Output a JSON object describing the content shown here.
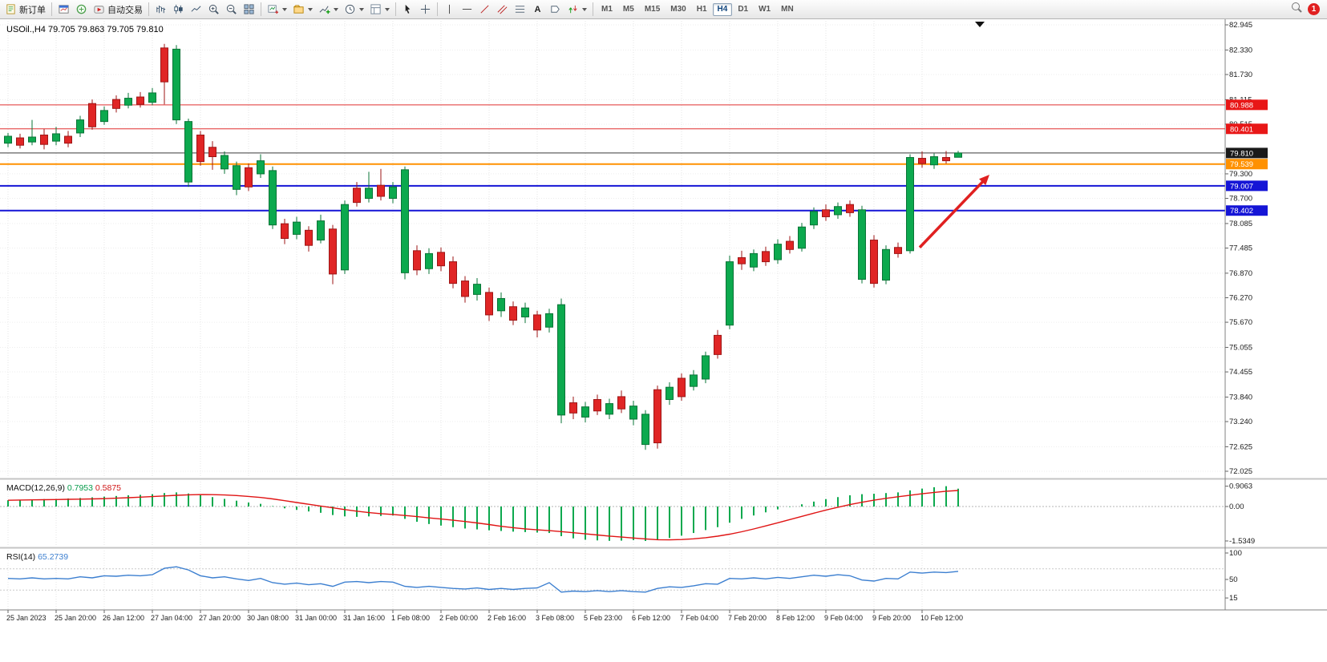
{
  "toolbar": {
    "new_order": "新订单",
    "auto_trading": "自动交易",
    "text_tool": "A",
    "timeframes": [
      "M1",
      "M5",
      "M15",
      "M30",
      "H1",
      "H4",
      "D1",
      "W1",
      "MN"
    ],
    "active_timeframe": "H4",
    "badge_count": "1"
  },
  "chart_data": {
    "type": "candlestick",
    "symbol": "USOil.,H4",
    "header_ohlc": "79.705 79.863 79.705 79.810",
    "current": {
      "open": 79.705,
      "high": 79.863,
      "low": 79.705,
      "close": 79.81
    },
    "price_axis": {
      "max": 82.945,
      "min": 72.025,
      "gridlines": [
        82.945,
        82.33,
        81.73,
        81.115,
        80.515,
        79.3,
        78.7,
        78.085,
        77.485,
        76.87,
        76.27,
        75.67,
        75.055,
        74.455,
        73.84,
        73.24,
        72.625,
        72.025
      ]
    },
    "price_badges": [
      {
        "label": "80.988",
        "price": 80.988,
        "bg": "#e81717"
      },
      {
        "label": "80.401",
        "price": 80.401,
        "bg": "#e81717"
      },
      {
        "label": "79.810",
        "price": 79.81,
        "bg": "#1a1a1a"
      },
      {
        "label": "79.539",
        "price": 79.539,
        "bg": "#ff9100"
      },
      {
        "label": "79.007",
        "price": 79.007,
        "bg": "#1515d6"
      },
      {
        "label": "78.402",
        "price": 78.402,
        "bg": "#1515d6"
      }
    ],
    "hlines": [
      {
        "price": 80.988,
        "color": "#e03131",
        "w": 1
      },
      {
        "price": 80.401,
        "color": "#e03131",
        "w": 1
      },
      {
        "price": 79.81,
        "color": "#3a3a3a",
        "w": 1
      },
      {
        "price": 79.539,
        "color": "#ff9100",
        "w": 2
      },
      {
        "price": 79.007,
        "color": "#1515d6",
        "w": 2
      },
      {
        "price": 78.402,
        "color": "#1515d6",
        "w": 2
      }
    ],
    "time_labels": [
      "25 Jan 2023",
      "25 Jan 20:00",
      "26 Jan 12:00",
      "27 Jan 04:00",
      "27 Jan 20:00",
      "30 Jan 08:00",
      "31 Jan 00:00",
      "31 Jan 16:00",
      "1 Feb 08:00",
      "2 Feb 00:00",
      "2 Feb 16:00",
      "3 Feb 08:00",
      "5 Feb 23:00",
      "6 Feb 12:00",
      "7 Feb 04:00",
      "7 Feb 20:00",
      "8 Feb 12:00",
      "9 Feb 04:00",
      "9 Feb 20:00",
      "10 Feb 12:00"
    ],
    "candles": [
      [
        80.05,
        80.3,
        79.95,
        80.22
      ],
      [
        80.18,
        80.28,
        79.92,
        80.0
      ],
      [
        80.08,
        80.62,
        80.0,
        80.2
      ],
      [
        80.25,
        80.4,
        79.9,
        80.02
      ],
      [
        80.1,
        80.45,
        80.0,
        80.28
      ],
      [
        80.22,
        80.35,
        79.95,
        80.05
      ],
      [
        80.3,
        80.72,
        80.2,
        80.62
      ],
      [
        81.02,
        81.12,
        80.38,
        80.45
      ],
      [
        80.58,
        80.95,
        80.5,
        80.85
      ],
      [
        81.12,
        81.22,
        80.8,
        80.9
      ],
      [
        80.98,
        81.28,
        80.9,
        81.15
      ],
      [
        81.18,
        81.3,
        80.92,
        81.0
      ],
      [
        81.05,
        81.4,
        80.98,
        81.28
      ],
      [
        82.38,
        82.48,
        81.0,
        81.55
      ],
      [
        80.62,
        82.45,
        80.52,
        82.35
      ],
      [
        79.1,
        80.65,
        78.98,
        80.58
      ],
      [
        80.25,
        80.35,
        79.5,
        79.6
      ],
      [
        79.95,
        80.1,
        79.4,
        79.72
      ],
      [
        79.42,
        79.85,
        79.3,
        79.75
      ],
      [
        78.92,
        79.6,
        78.78,
        79.5
      ],
      [
        79.45,
        79.55,
        78.88,
        78.98
      ],
      [
        79.3,
        79.78,
        79.2,
        79.62
      ],
      [
        78.05,
        79.48,
        77.95,
        79.38
      ],
      [
        78.08,
        78.2,
        77.58,
        77.72
      ],
      [
        77.82,
        78.25,
        77.7,
        78.12
      ],
      [
        77.92,
        78.02,
        77.4,
        77.55
      ],
      [
        77.68,
        78.3,
        77.6,
        78.15
      ],
      [
        77.95,
        78.05,
        76.6,
        76.85
      ],
      [
        76.95,
        78.65,
        76.85,
        78.55
      ],
      [
        78.95,
        79.1,
        78.5,
        78.6
      ],
      [
        78.7,
        79.35,
        78.6,
        78.95
      ],
      [
        79.02,
        79.42,
        78.65,
        78.75
      ],
      [
        78.7,
        79.1,
        78.58,
        78.98
      ],
      [
        76.88,
        79.48,
        76.72,
        79.4
      ],
      [
        77.42,
        77.55,
        76.82,
        76.95
      ],
      [
        76.98,
        77.48,
        76.85,
        77.35
      ],
      [
        77.38,
        77.5,
        76.92,
        77.05
      ],
      [
        77.15,
        77.28,
        76.5,
        76.62
      ],
      [
        76.68,
        76.8,
        76.15,
        76.3
      ],
      [
        76.35,
        76.75,
        76.2,
        76.6
      ],
      [
        76.4,
        76.52,
        75.7,
        75.85
      ],
      [
        75.95,
        76.4,
        75.8,
        76.25
      ],
      [
        76.05,
        76.18,
        75.6,
        75.72
      ],
      [
        75.8,
        76.15,
        75.65,
        76.02
      ],
      [
        75.85,
        75.95,
        75.3,
        75.48
      ],
      [
        75.55,
        76.0,
        75.42,
        75.88
      ],
      [
        73.4,
        76.25,
        73.2,
        76.1
      ],
      [
        73.7,
        73.85,
        73.3,
        73.45
      ],
      [
        73.35,
        73.72,
        73.22,
        73.6
      ],
      [
        73.78,
        73.9,
        73.4,
        73.5
      ],
      [
        73.42,
        73.8,
        73.3,
        73.68
      ],
      [
        73.85,
        74.0,
        73.45,
        73.55
      ],
      [
        73.3,
        73.75,
        73.15,
        73.62
      ],
      [
        72.68,
        73.52,
        72.55,
        73.42
      ],
      [
        74.02,
        74.12,
        72.58,
        72.72
      ],
      [
        73.78,
        74.2,
        73.65,
        74.08
      ],
      [
        74.3,
        74.42,
        73.75,
        73.85
      ],
      [
        74.1,
        74.5,
        74.0,
        74.38
      ],
      [
        74.28,
        74.95,
        74.18,
        74.85
      ],
      [
        75.35,
        75.48,
        74.78,
        74.88
      ],
      [
        75.6,
        77.3,
        75.5,
        77.15
      ],
      [
        77.25,
        77.42,
        76.95,
        77.1
      ],
      [
        77.02,
        77.45,
        76.92,
        77.35
      ],
      [
        77.4,
        77.52,
        77.05,
        77.15
      ],
      [
        77.2,
        77.7,
        77.1,
        77.58
      ],
      [
        77.65,
        77.78,
        77.35,
        77.45
      ],
      [
        77.48,
        78.1,
        77.4,
        78.0
      ],
      [
        78.05,
        78.48,
        77.95,
        78.38
      ],
      [
        78.42,
        78.55,
        78.15,
        78.25
      ],
      [
        78.3,
        78.6,
        78.2,
        78.5
      ],
      [
        78.55,
        78.65,
        78.25,
        78.35
      ],
      [
        76.72,
        78.52,
        76.62,
        78.42
      ],
      [
        77.68,
        77.8,
        76.52,
        76.62
      ],
      [
        76.7,
        77.55,
        76.6,
        77.45
      ],
      [
        77.5,
        77.62,
        77.25,
        77.35
      ],
      [
        77.42,
        79.78,
        77.35,
        79.7
      ],
      [
        79.68,
        79.85,
        79.45,
        79.55
      ],
      [
        79.52,
        79.8,
        79.42,
        79.72
      ],
      [
        79.7,
        79.86,
        79.55,
        79.62
      ],
      [
        79.705,
        79.863,
        79.705,
        79.81
      ]
    ],
    "colors": {
      "up": "#0ca94e",
      "up_stroke": "#0a7437",
      "down": "#e02525",
      "down_stroke": "#9e1616"
    },
    "arrow": {
      "i1": 75.8,
      "p1": 77.5,
      "i2": 81.6,
      "p2": 79.28,
      "color": "#e02020"
    },
    "macd": {
      "name": "MACD(12,26,9)",
      "value_main": "0.7953",
      "value_signal": "0.5875",
      "axis": [
        "0.9063",
        "0.00",
        "-1.5349"
      ],
      "max": 0.9063,
      "min": -1.5349,
      "bar_color": "#0ca94e",
      "signal_color": "#e01414",
      "values": [
        0.28,
        0.3,
        0.31,
        0.33,
        0.34,
        0.36,
        0.38,
        0.41,
        0.44,
        0.47,
        0.5,
        0.52,
        0.55,
        0.6,
        0.63,
        0.58,
        0.5,
        0.42,
        0.34,
        0.26,
        0.18,
        0.12,
        0.02,
        -0.08,
        -0.15,
        -0.22,
        -0.28,
        -0.38,
        -0.44,
        -0.46,
        -0.44,
        -0.42,
        -0.4,
        -0.55,
        -0.68,
        -0.78,
        -0.85,
        -0.92,
        -0.98,
        -1.02,
        -1.06,
        -1.09,
        -1.12,
        -1.14,
        -1.16,
        -1.18,
        -1.32,
        -1.42,
        -1.48,
        -1.51,
        -1.53,
        -1.52,
        -1.5,
        -1.5349,
        -1.48,
        -1.4,
        -1.3,
        -1.18,
        -1.05,
        -0.92,
        -0.72,
        -0.55,
        -0.4,
        -0.26,
        -0.13,
        -0.02,
        0.1,
        0.22,
        0.33,
        0.42,
        0.5,
        0.55,
        0.57,
        0.6,
        0.63,
        0.72,
        0.8,
        0.86,
        0.9063,
        0.7953
      ]
    },
    "rsi": {
      "name": "RSI(14)",
      "value": "65.2739",
      "axis": [
        "100",
        "50",
        "15"
      ],
      "levels": [
        70,
        30
      ],
      "line_color": "#3c7fd0",
      "values": [
        52,
        51,
        53,
        51,
        52,
        51,
        55,
        53,
        57,
        56,
        58,
        57,
        59,
        71,
        74,
        68,
        57,
        53,
        55,
        51,
        48,
        52,
        44,
        41,
        43,
        40,
        42,
        37,
        45,
        46,
        44,
        46,
        45,
        37,
        35,
        37,
        35,
        33,
        32,
        34,
        31,
        33,
        31,
        33,
        34,
        44,
        26,
        28,
        27,
        29,
        27,
        29,
        27,
        26,
        33,
        36,
        35,
        38,
        42,
        41,
        52,
        51,
        53,
        51,
        54,
        52,
        55,
        58,
        56,
        59,
        57,
        49,
        47,
        52,
        51,
        64,
        62,
        64,
        63,
        65.2739
      ]
    }
  }
}
